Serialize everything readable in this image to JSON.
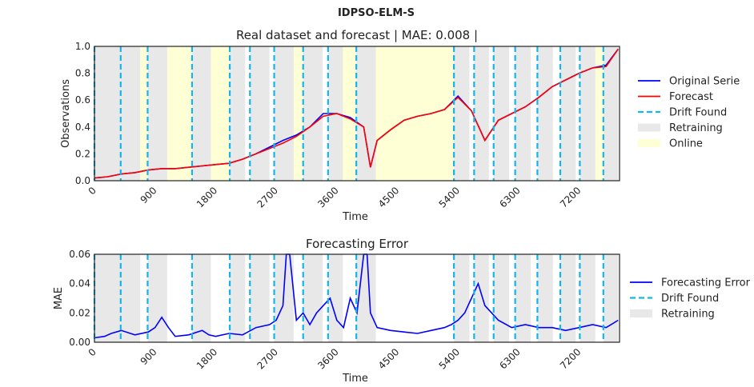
{
  "figure": {
    "suptitle": "IDPSO-ELM-S"
  },
  "chart_data": [
    {
      "type": "line",
      "title": "Real dataset and forecast | MAE: 0.008 |",
      "xlabel": "Time",
      "ylabel": "Observations",
      "xlim": [
        0,
        7800
      ],
      "ylim": [
        0,
        1.0
      ],
      "xticks": [
        "0",
        "900",
        "1800",
        "2700",
        "3600",
        "4500",
        "5400",
        "6300",
        "7200"
      ],
      "yticks": [
        "0.0",
        "0.2",
        "0.4",
        "0.6",
        "0.8",
        "1.0"
      ],
      "grid": false,
      "legend_position": "right",
      "legend": [
        "Original Serie",
        "Forecast",
        "Drift Found",
        "Retraining",
        "Online"
      ],
      "colors": {
        "original": "#0000ff",
        "forecast": "#ff0000",
        "drift": "#13b6ec",
        "retraining": "#e8e8e8",
        "online": "#ffffd6"
      },
      "drift_points": [
        0,
        390,
        790,
        1450,
        2010,
        2310,
        2670,
        3100,
        3470,
        3890,
        5340,
        5640,
        5930,
        6250,
        6580,
        6920,
        7210,
        7560
      ],
      "retraining_periods": [
        [
          0,
          390
        ],
        [
          390,
          680
        ],
        [
          790,
          1080
        ],
        [
          1450,
          1730
        ],
        [
          2010,
          2240
        ],
        [
          2310,
          2600
        ],
        [
          2670,
          2960
        ],
        [
          3100,
          3390
        ],
        [
          3470,
          3690
        ],
        [
          3890,
          4180
        ],
        [
          5340,
          5570
        ],
        [
          5640,
          5860
        ],
        [
          5930,
          6160
        ],
        [
          6250,
          6480
        ],
        [
          6580,
          6810
        ],
        [
          6920,
          7150
        ],
        [
          7210,
          7440
        ],
        [
          7560,
          7780
        ]
      ],
      "online_periods": [
        [
          680,
          790
        ],
        [
          1080,
          1450
        ],
        [
          1730,
          2010
        ],
        [
          2960,
          3100
        ],
        [
          3690,
          3890
        ],
        [
          4180,
          5340
        ],
        [
          7440,
          7560
        ]
      ],
      "series": [
        {
          "name": "Original Serie",
          "x": [
            0,
            200,
            400,
            600,
            800,
            1000,
            1200,
            1400,
            1600,
            1800,
            2000,
            2200,
            2400,
            2600,
            2800,
            3000,
            3200,
            3400,
            3600,
            3800,
            4000,
            4100,
            4200,
            4400,
            4600,
            4800,
            5000,
            5200,
            5400,
            5600,
            5800,
            6000,
            6200,
            6400,
            6600,
            6800,
            7000,
            7200,
            7400,
            7600,
            7780
          ],
          "y": [
            0.02,
            0.03,
            0.05,
            0.06,
            0.08,
            0.09,
            0.09,
            0.1,
            0.11,
            0.12,
            0.13,
            0.16,
            0.2,
            0.25,
            0.3,
            0.34,
            0.4,
            0.5,
            0.5,
            0.47,
            0.4,
            0.1,
            0.3,
            0.38,
            0.45,
            0.48,
            0.5,
            0.53,
            0.63,
            0.52,
            0.3,
            0.45,
            0.5,
            0.55,
            0.62,
            0.7,
            0.75,
            0.8,
            0.84,
            0.86,
            0.98
          ]
        },
        {
          "name": "Forecast",
          "x": [
            0,
            200,
            400,
            600,
            800,
            1000,
            1200,
            1400,
            1600,
            1800,
            2000,
            2200,
            2400,
            2600,
            2800,
            3000,
            3200,
            3400,
            3600,
            3800,
            4000,
            4100,
            4200,
            4400,
            4600,
            4800,
            5000,
            5200,
            5400,
            5600,
            5800,
            6000,
            6200,
            6400,
            6600,
            6800,
            7000,
            7200,
            7400,
            7600,
            7780
          ],
          "y": [
            0.02,
            0.03,
            0.05,
            0.06,
            0.08,
            0.09,
            0.09,
            0.1,
            0.11,
            0.12,
            0.13,
            0.16,
            0.2,
            0.24,
            0.28,
            0.33,
            0.4,
            0.48,
            0.5,
            0.46,
            0.4,
            0.1,
            0.3,
            0.38,
            0.45,
            0.48,
            0.5,
            0.53,
            0.62,
            0.52,
            0.3,
            0.45,
            0.5,
            0.55,
            0.62,
            0.7,
            0.75,
            0.8,
            0.84,
            0.85,
            0.98
          ]
        }
      ]
    },
    {
      "type": "line",
      "title": "Forecasting Error",
      "xlabel": "Time",
      "ylabel": "MAE",
      "xlim": [
        0,
        7800
      ],
      "ylim": [
        0,
        0.06
      ],
      "xticks": [
        "0",
        "900",
        "1800",
        "2700",
        "3600",
        "4500",
        "5400",
        "6300",
        "7200"
      ],
      "yticks": [
        "0.00",
        "0.02",
        "0.04",
        "0.06"
      ],
      "grid": false,
      "legend_position": "right",
      "legend": [
        "Forecasting Error",
        "Drift Found",
        "Retraining"
      ],
      "colors": {
        "error": "#0000ff",
        "drift": "#13b6ec",
        "retraining": "#e8e8e8"
      },
      "drift_points": [
        0,
        390,
        790,
        1450,
        2010,
        2310,
        2670,
        3100,
        3470,
        3890,
        5340,
        5640,
        5930,
        6250,
        6580,
        6920,
        7210,
        7560
      ],
      "retraining_periods": [
        [
          0,
          390
        ],
        [
          390,
          680
        ],
        [
          790,
          1080
        ],
        [
          1450,
          1730
        ],
        [
          2010,
          2240
        ],
        [
          2310,
          2600
        ],
        [
          2670,
          2960
        ],
        [
          3100,
          3390
        ],
        [
          3470,
          3690
        ],
        [
          3890,
          4180
        ],
        [
          5340,
          5570
        ],
        [
          5640,
          5860
        ],
        [
          5930,
          6160
        ],
        [
          6250,
          6480
        ],
        [
          6580,
          6810
        ],
        [
          6920,
          7150
        ],
        [
          7210,
          7440
        ],
        [
          7560,
          7780
        ]
      ],
      "series": [
        {
          "name": "Forecasting Error",
          "x": [
            0,
            150,
            250,
            400,
            600,
            800,
            900,
            1000,
            1100,
            1200,
            1400,
            1600,
            1700,
            1800,
            2000,
            2200,
            2400,
            2600,
            2700,
            2800,
            2850,
            2900,
            3000,
            3100,
            3200,
            3300,
            3400,
            3500,
            3600,
            3700,
            3800,
            3900,
            4000,
            4050,
            4100,
            4200,
            4400,
            4600,
            4800,
            5000,
            5200,
            5300,
            5400,
            5500,
            5600,
            5700,
            5800,
            5900,
            6000,
            6200,
            6400,
            6600,
            6800,
            7000,
            7200,
            7400,
            7600,
            7780
          ],
          "y": [
            0.003,
            0.004,
            0.006,
            0.008,
            0.005,
            0.007,
            0.01,
            0.017,
            0.01,
            0.004,
            0.005,
            0.008,
            0.005,
            0.004,
            0.006,
            0.005,
            0.01,
            0.012,
            0.015,
            0.025,
            0.06,
            0.06,
            0.015,
            0.02,
            0.012,
            0.02,
            0.025,
            0.03,
            0.015,
            0.01,
            0.03,
            0.02,
            0.06,
            0.06,
            0.02,
            0.01,
            0.008,
            0.007,
            0.006,
            0.008,
            0.01,
            0.012,
            0.015,
            0.02,
            0.03,
            0.04,
            0.025,
            0.02,
            0.015,
            0.01,
            0.012,
            0.01,
            0.01,
            0.008,
            0.01,
            0.012,
            0.01,
            0.015
          ]
        }
      ]
    }
  ]
}
